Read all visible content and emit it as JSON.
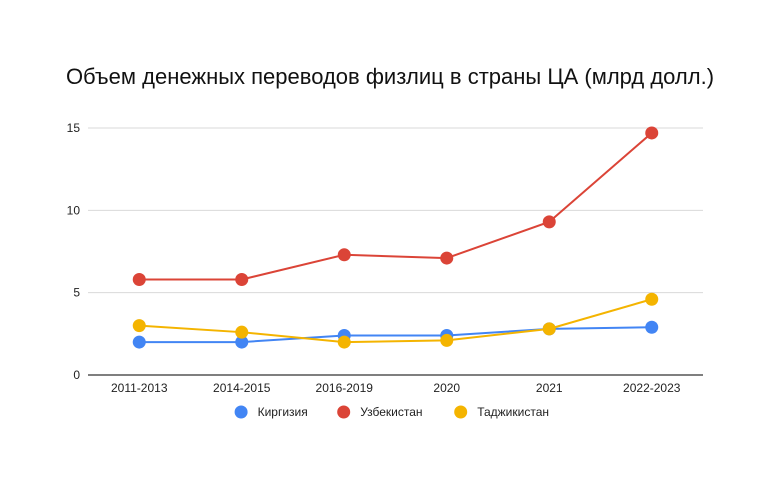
{
  "chart_data": {
    "type": "line",
    "title": "Объем денежных переводов физлиц в страны ЦА (млрд долл.)",
    "xlabel": "",
    "ylabel": "",
    "categories": [
      "2011-2013",
      "2014-2015",
      "2016-2019",
      "2020",
      "2021",
      "2022-2023"
    ],
    "ylim": [
      0,
      15
    ],
    "yticks": [
      0,
      5,
      10,
      15
    ],
    "grid": true,
    "legend_position": "bottom",
    "series": [
      {
        "name": "Киргизия",
        "color": "#4285F4",
        "values": [
          2.0,
          2.0,
          2.4,
          2.4,
          2.8,
          2.9
        ]
      },
      {
        "name": "Узбекистан",
        "color": "#DB4437",
        "values": [
          5.8,
          5.8,
          7.3,
          7.1,
          9.3,
          14.7
        ]
      },
      {
        "name": "Таджикистан",
        "color": "#F4B400",
        "values": [
          3.0,
          2.6,
          2.0,
          2.1,
          2.8,
          4.6
        ]
      }
    ]
  }
}
